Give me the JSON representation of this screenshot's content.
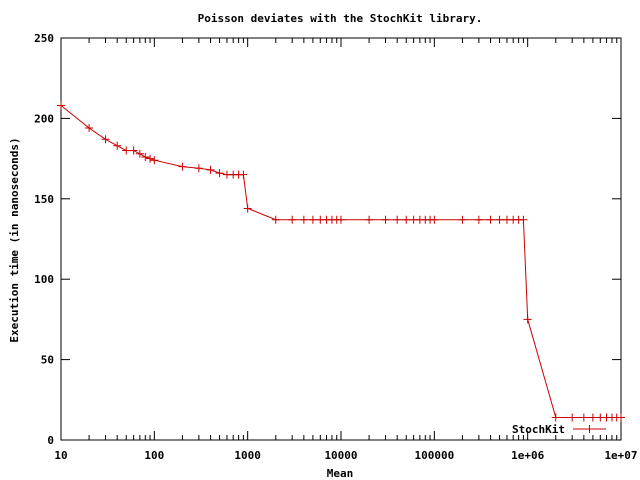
{
  "chart_data": {
    "type": "line",
    "title": "Poisson deviates with the StochKit library.",
    "xlabel": "Mean",
    "ylabel": "Execution time (in nanoseconds)",
    "x_scale": "log",
    "xlim": [
      10,
      10000000
    ],
    "ylim": [
      0,
      250
    ],
    "x_ticks": [
      10,
      100,
      1000,
      10000,
      100000,
      1000000,
      10000000
    ],
    "x_tick_labels": [
      "10",
      "100",
      "1000",
      "10000",
      "100000",
      "1e+06",
      "1e+07"
    ],
    "y_ticks": [
      0,
      50,
      100,
      150,
      200,
      250
    ],
    "y_tick_labels": [
      "0",
      "50",
      "100",
      "150",
      "200",
      "250"
    ],
    "grid": false,
    "legend_position": "bottom-right",
    "color": "#cc0000",
    "series": [
      {
        "name": "StochKit",
        "x": [
          10,
          20,
          30,
          40,
          50,
          60,
          70,
          80,
          90,
          100,
          200,
          300,
          400,
          500,
          600,
          700,
          800,
          900,
          1000,
          2000,
          3000,
          4000,
          5000,
          6000,
          7000,
          8000,
          9000,
          10000,
          20000,
          30000,
          40000,
          50000,
          60000,
          70000,
          80000,
          90000,
          100000,
          200000,
          300000,
          400000,
          500000,
          600000,
          700000,
          800000,
          900000,
          1000000,
          2000000,
          3000000,
          4000000,
          5000000,
          6000000,
          7000000,
          8000000,
          9000000,
          10000000
        ],
        "y": [
          208,
          194,
          187,
          183,
          180,
          180,
          178,
          176,
          175,
          174,
          170,
          169,
          168,
          166,
          165,
          165,
          165,
          165,
          144,
          137,
          137,
          137,
          137,
          137,
          137,
          137,
          137,
          137,
          137,
          137,
          137,
          137,
          137,
          137,
          137,
          137,
          137,
          137,
          137,
          137,
          137,
          137,
          137,
          137,
          137,
          75,
          14,
          14,
          14,
          14,
          14,
          14,
          14,
          14,
          14
        ]
      }
    ]
  }
}
